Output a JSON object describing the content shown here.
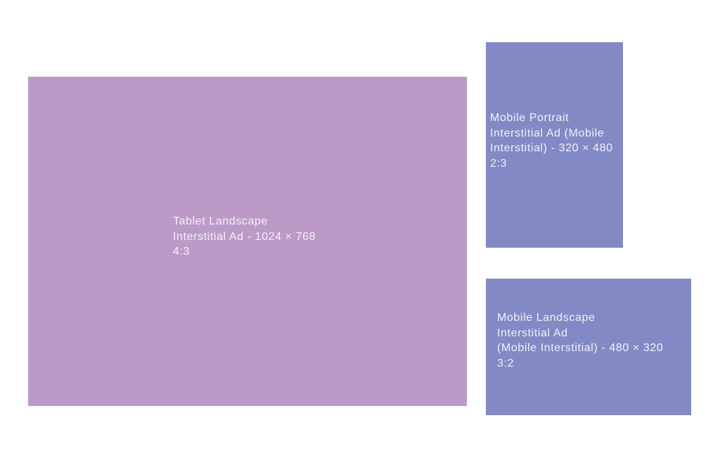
{
  "boxes": [
    {
      "lines": [
        "Tablet Landscape",
        "Interstitial Ad - 1024 × 768",
        "4:3"
      ],
      "color": "#BB9AC8"
    },
    {
      "lines": [
        "Mobile Portrait",
        "Interstitial Ad (Mobile",
        "Interstitial) - 320 × 480",
        "2:3"
      ],
      "color": "#8389C5"
    },
    {
      "lines": [
        "Mobile Landscape",
        "Interstitial Ad",
        "(Mobile Interstitial) - 480 × 320",
        "3:2"
      ],
      "color": "#8389C5"
    }
  ]
}
